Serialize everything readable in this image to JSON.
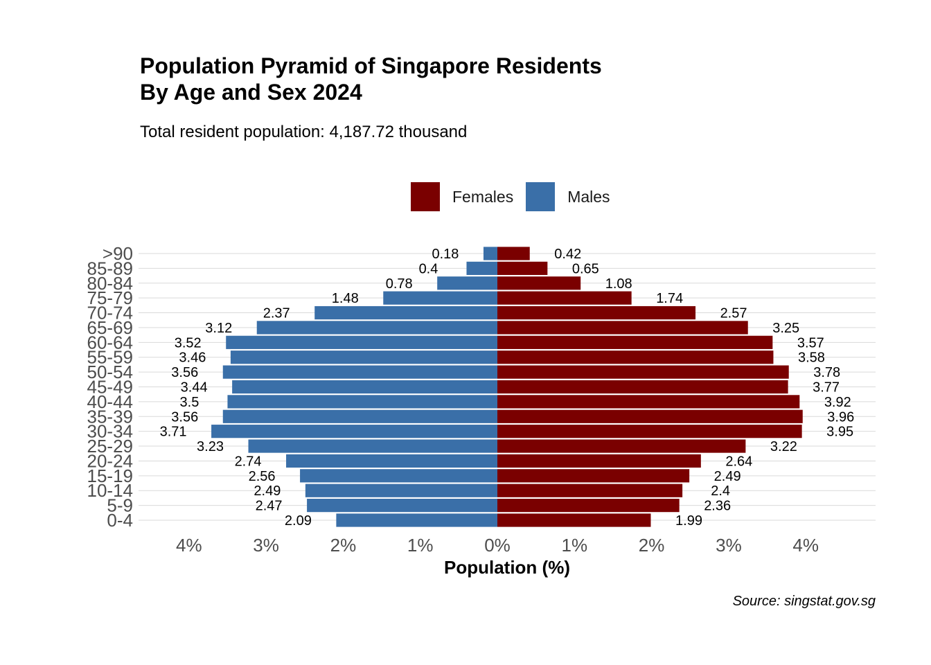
{
  "chart_data": {
    "type": "bar",
    "orientation": "horizontal",
    "title": "Population Pyramid of Singapore Residents\nBy Age and Sex 2024",
    "subtitle": "Total resident population: 4,187.72 thousand",
    "xlabel": "Population (%)",
    "ylabel": "",
    "source": "Source: singstat.gov.sg",
    "legend_position": "top",
    "grid": "horizontal",
    "xlim": [
      -4.5,
      4.5
    ],
    "x_ticks": [
      -4,
      -3,
      -2,
      -1,
      0,
      1,
      2,
      3,
      4
    ],
    "x_tick_labels": [
      "4%",
      "3%",
      "2%",
      "1%",
      "0%",
      "1%",
      "2%",
      "3%",
      "4%"
    ],
    "categories": [
      "0-4",
      "5-9",
      "10-14",
      "15-19",
      "20-24",
      "25-29",
      "30-34",
      "35-39",
      "40-44",
      "45-49",
      "50-54",
      "55-59",
      "60-64",
      "65-69",
      "70-74",
      "75-79",
      "80-84",
      "85-89",
      ">90"
    ],
    "series": [
      {
        "name": "Females",
        "color": "#7a0000",
        "side": "right",
        "values": [
          1.99,
          2.36,
          2.4,
          2.49,
          2.64,
          3.22,
          3.95,
          3.96,
          3.92,
          3.77,
          3.78,
          3.58,
          3.57,
          3.25,
          2.57,
          1.74,
          1.08,
          0.65,
          0.42
        ],
        "labels": [
          "1.99",
          "2.36",
          "2.4",
          "2.49",
          "2.64",
          "3.22",
          "3.95",
          "3.96",
          "3.92",
          "3.77",
          "3.78",
          "3.58",
          "3.57",
          "3.25",
          "2.57",
          "1.74",
          "1.08",
          "0.65",
          "0.42"
        ]
      },
      {
        "name": "Males",
        "color": "#3a6fa8",
        "side": "left",
        "values": [
          2.09,
          2.47,
          2.49,
          2.56,
          2.74,
          3.23,
          3.71,
          3.56,
          3.5,
          3.44,
          3.56,
          3.46,
          3.52,
          3.12,
          2.37,
          1.48,
          0.78,
          0.4,
          0.18
        ],
        "labels": [
          "2.09",
          "2.47",
          "2.49",
          "2.56",
          "2.74",
          "3.23",
          "3.71",
          "3.56",
          "3.5",
          "3.44",
          "3.56",
          "3.46",
          "3.52",
          "3.12",
          "2.37",
          "1.48",
          "0.78",
          "0.4",
          "0.18"
        ]
      }
    ]
  }
}
